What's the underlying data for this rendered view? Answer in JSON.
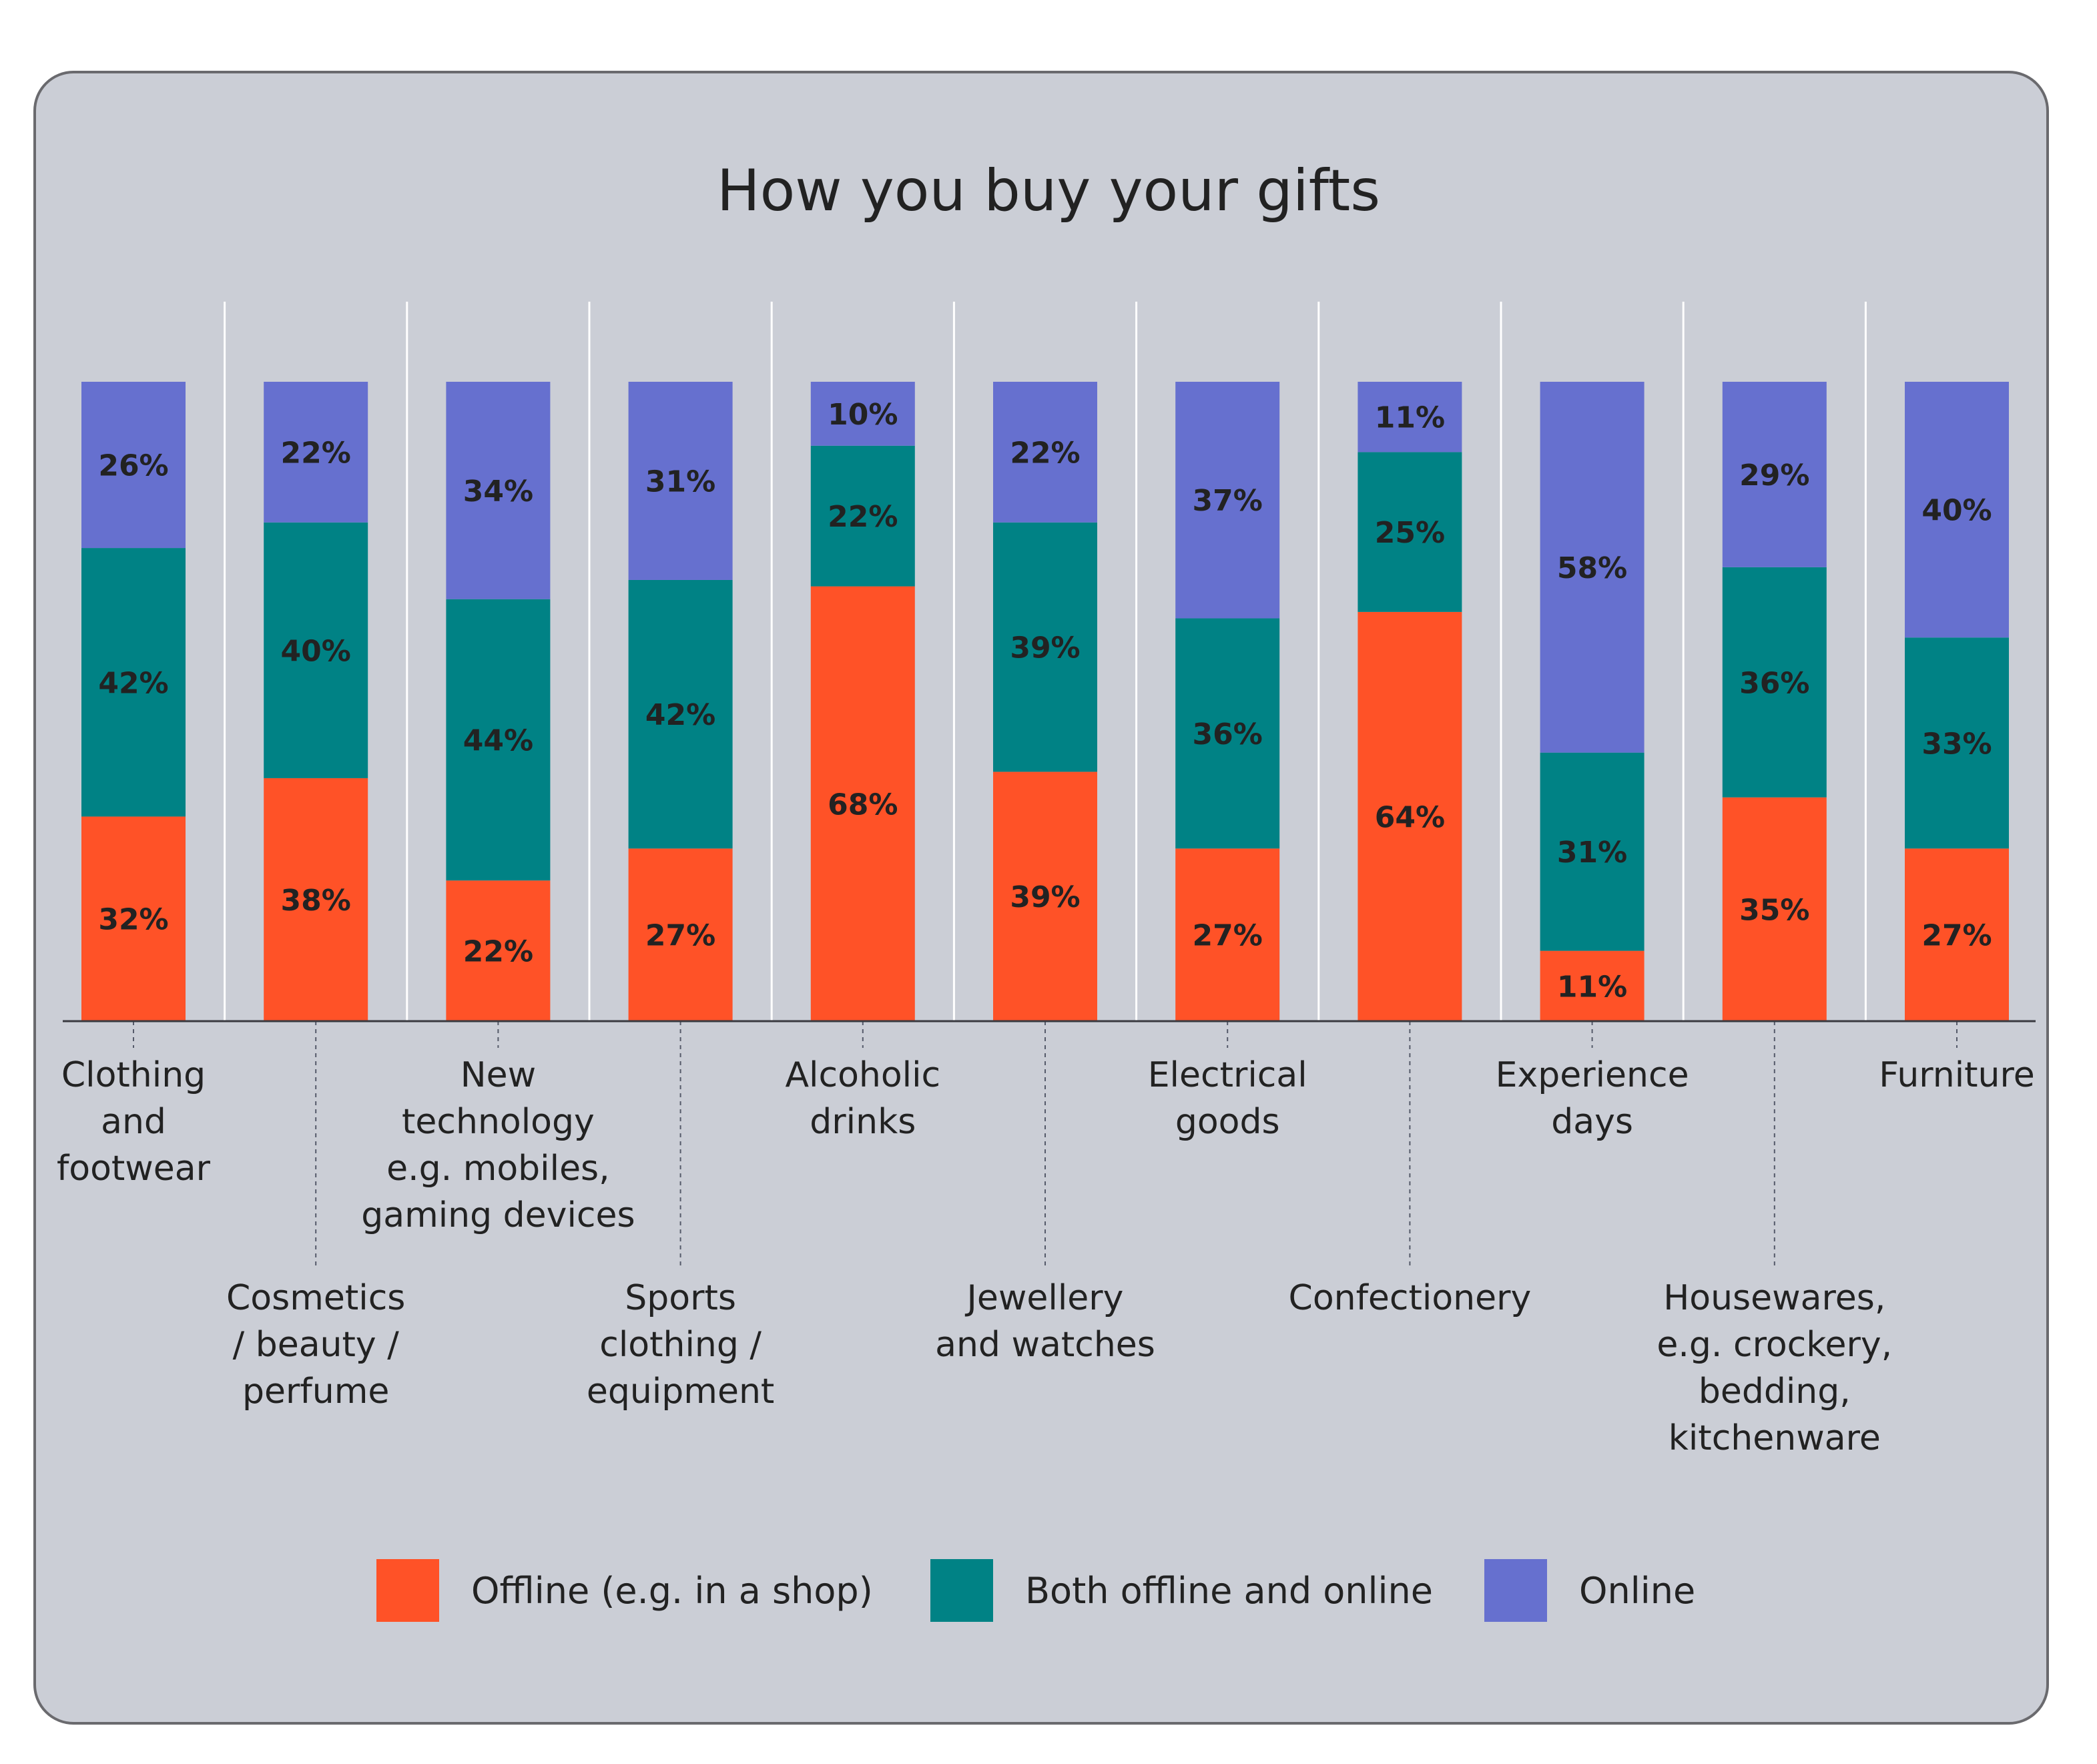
{
  "chart_data": {
    "type": "bar",
    "stacked": true,
    "title": "How you buy your gifts",
    "categories": [
      [
        "Clothing",
        "and",
        "footwear"
      ],
      [
        "Cosmetics",
        "/ beauty /",
        "perfume"
      ],
      [
        "New",
        "technology",
        "e.g. mobiles,",
        "gaming devices"
      ],
      [
        "Sports",
        "clothing /",
        "equipment"
      ],
      [
        "Alcoholic",
        "drinks"
      ],
      [
        "Jewellery",
        "and watches"
      ],
      [
        "Electrical",
        "goods"
      ],
      [
        "Confectionery"
      ],
      [
        "Experience",
        "days"
      ],
      [
        "Housewares,",
        "e.g. crockery,",
        "bedding,",
        "kitchenware"
      ],
      [
        "Furniture"
      ]
    ],
    "series": [
      {
        "name": "Offline (e.g. in a shop)",
        "color": "#ff5227",
        "values": [
          32,
          38,
          22,
          27,
          68,
          39,
          27,
          64,
          11,
          35,
          27
        ]
      },
      {
        "name": "Both offline and online",
        "color": "#008285",
        "values": [
          42,
          40,
          44,
          42,
          22,
          39,
          36,
          25,
          31,
          36,
          33
        ]
      },
      {
        "name": "Online",
        "color": "#6670cf",
        "values": [
          26,
          22,
          34,
          31,
          10,
          22,
          37,
          11,
          58,
          29,
          40
        ]
      }
    ],
    "value_suffix": "%",
    "ylim": [
      0,
      100
    ],
    "grid": false,
    "legend_position": "bottom"
  }
}
